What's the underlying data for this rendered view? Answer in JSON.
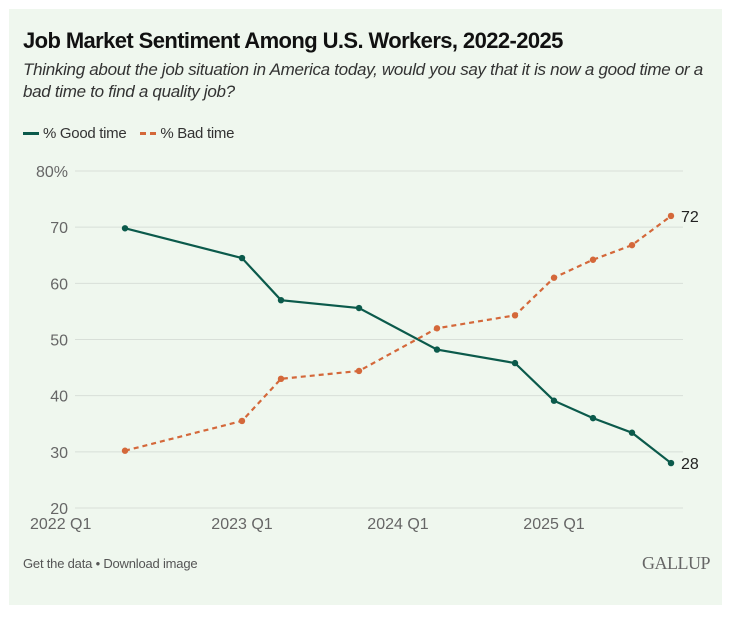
{
  "header": {
    "title": "Job Market Sentiment Among U.S. Workers, 2022-2025",
    "subtitle": "Thinking about the job situation in America today, would you say that it is now a good time or a bad time to find a quality job?"
  },
  "footer": {
    "get_data": "Get the data",
    "separator": " • ",
    "download": "Download image",
    "logo": "GALLUP"
  },
  "colors": {
    "good": "#0b5a4b",
    "bad": "#d4683a",
    "grid": "#d8dfd8",
    "background": "#eff7ee"
  },
  "chart_data": {
    "type": "line",
    "title": "Job Market Sentiment Among U.S. Workers, 2022-2025",
    "xlabel": "",
    "ylabel": "",
    "x_ticks": [
      "2022 Q1",
      "2023 Q1",
      "2024 Q1",
      "2025 Q1"
    ],
    "x_tick_quarter_index": [
      0,
      4,
      8,
      12
    ],
    "x_quarter_index": [
      1,
      4,
      5,
      7,
      9,
      11,
      12,
      13,
      14,
      15
    ],
    "y_ticks": [
      "80%",
      "70",
      "60",
      "50",
      "40",
      "30",
      "20"
    ],
    "y_tick_values": [
      80,
      70,
      60,
      50,
      40,
      30,
      20
    ],
    "ylim": [
      20,
      80
    ],
    "grid": true,
    "legend_position": "top-left",
    "series": [
      {
        "name": "% Good time",
        "style": "solid",
        "values": [
          69.8,
          64.5,
          57,
          55.6,
          48.2,
          45.8,
          39.1,
          36,
          33.4,
          28
        ],
        "end_label": "28"
      },
      {
        "name": "% Bad time",
        "style": "dashed",
        "values": [
          30.2,
          35.5,
          43,
          44.4,
          52,
          54.3,
          61,
          64.2,
          66.8,
          72
        ],
        "end_label": "72"
      }
    ]
  }
}
